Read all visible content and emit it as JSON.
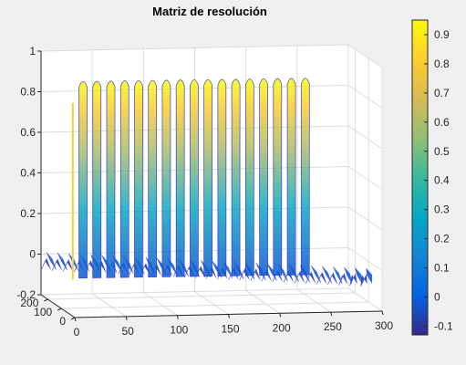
{
  "chart_data": {
    "type": "surface",
    "title": "Matriz de resolución",
    "xlabel": "",
    "ylabel": "",
    "zlabel": "",
    "x_ticks": [
      "0",
      "50",
      "100",
      "150",
      "200",
      "250",
      "300"
    ],
    "y_ticks": [
      "0",
      "100",
      "200"
    ],
    "z_ticks": [
      "-0.2",
      "0",
      "0.2",
      "0.4",
      "0.6",
      "0.8",
      "1"
    ],
    "xlim": [
      0,
      300
    ],
    "ylim": [
      0,
      250
    ],
    "zlim": [
      -0.2,
      1
    ],
    "grid": true,
    "colormap": "parula",
    "colorbar": {
      "ticks": [
        "-0.1",
        "0",
        "0.1",
        "0.2",
        "0.3",
        "0.4",
        "0.5",
        "0.6",
        "0.7",
        "0.8",
        "0.9"
      ],
      "range": [
        -0.13,
        0.95
      ]
    },
    "surface": {
      "n_peaks": 17,
      "peak_value": 0.95,
      "baseline_min": -0.13,
      "diagonal_start": [
        0,
        250
      ],
      "diagonal_end": [
        250,
        0
      ]
    }
  },
  "colors": {
    "background": "#f0f0f0",
    "axes_bg": "#ffffff",
    "grid": "#dcdcdc",
    "axis": "#262626",
    "parula": [
      "#352a87",
      "#0363e1",
      "#1485d4",
      "#06a7c6",
      "#38b99e",
      "#92bf73",
      "#d9ba56",
      "#fcce2e",
      "#f9fb0e"
    ]
  }
}
